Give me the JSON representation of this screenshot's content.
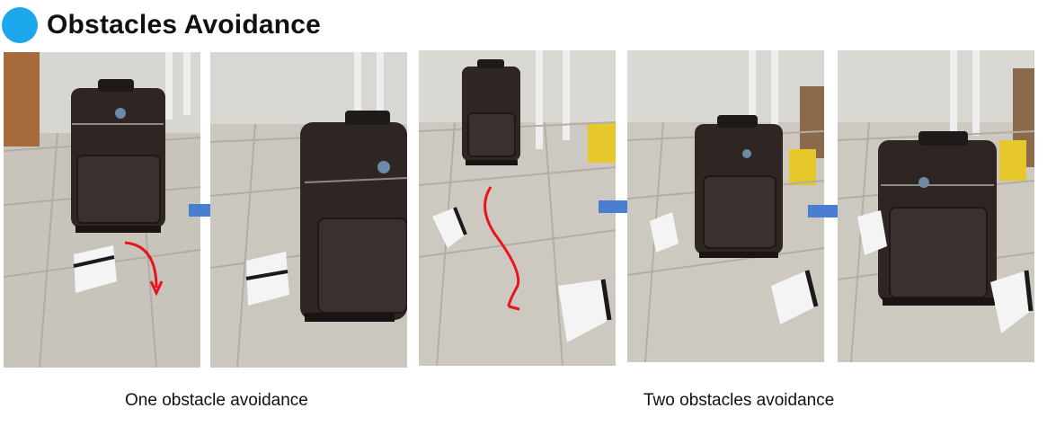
{
  "title": "Obstacles Avoidance",
  "accent_color": "#1ca7ec",
  "arrow_color": "#4a7ed0",
  "path_color": "#e8141c",
  "captions": {
    "one": "One obstacle avoidance",
    "two": "Two obstacles avoidance"
  },
  "photos": [
    {
      "scene": "suitcase-before-one-obstacle"
    },
    {
      "scene": "suitcase-after-one-obstacle"
    },
    {
      "scene": "suitcase-before-two-obstacles"
    },
    {
      "scene": "suitcase-middle-two-obstacles"
    },
    {
      "scene": "suitcase-after-two-obstacles"
    }
  ]
}
